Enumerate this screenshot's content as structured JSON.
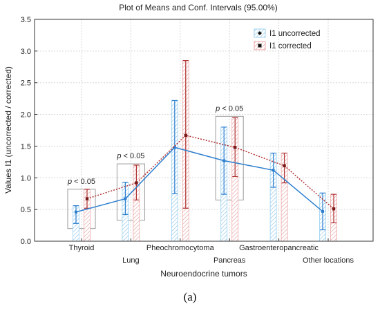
{
  "caption": "(a)",
  "chart_data": {
    "type": "bar",
    "title": "Plot of Means and Conf. Intervals (95.00%)",
    "xlabel": "Neuroendocrine tumors",
    "ylabel": "Values I1 (uncorrected / corrected)",
    "ylim": [
      0,
      3.5
    ],
    "yticks": [
      "0.0",
      "0.5",
      "1.0",
      "1.5",
      "2.0",
      "2.5",
      "3.0",
      "3.5"
    ],
    "grid": true,
    "legend_position": "top-right",
    "categories": [
      "Thyroid",
      "Lung",
      "Pheochromocytoma",
      "Pancreas",
      "Gastroenteropancreatic",
      "Other locations"
    ],
    "series": [
      {
        "name": "I1 uncorrected",
        "color": "#2d7fcf",
        "line_style": "solid",
        "mean": [
          0.46,
          0.67,
          1.48,
          1.27,
          1.12,
          0.47
        ],
        "ci_low": [
          0.28,
          0.42,
          0.75,
          0.74,
          0.85,
          0.18
        ],
        "ci_high": [
          0.56,
          0.93,
          2.22,
          1.8,
          1.39,
          0.76
        ]
      },
      {
        "name": "I1 corrected",
        "color": "#b03030",
        "line_style": "dotted",
        "mean": [
          0.67,
          0.92,
          1.67,
          1.48,
          1.19,
          0.51
        ],
        "ci_low": [
          0.52,
          0.65,
          0.52,
          1.02,
          0.92,
          0.29
        ],
        "ci_high": [
          0.82,
          1.2,
          2.85,
          1.95,
          1.39,
          0.74
        ]
      }
    ],
    "annotations": [
      {
        "text": "p < 0.05",
        "category": "Thyroid",
        "box_range": [
          0.2,
          0.82
        ]
      },
      {
        "text": "p < 0.05",
        "category": "Lung",
        "box_range": [
          0.33,
          1.22
        ]
      },
      {
        "text": "p < 0.05",
        "category": "Pancreas",
        "box_range": [
          0.65,
          1.97
        ]
      }
    ]
  }
}
